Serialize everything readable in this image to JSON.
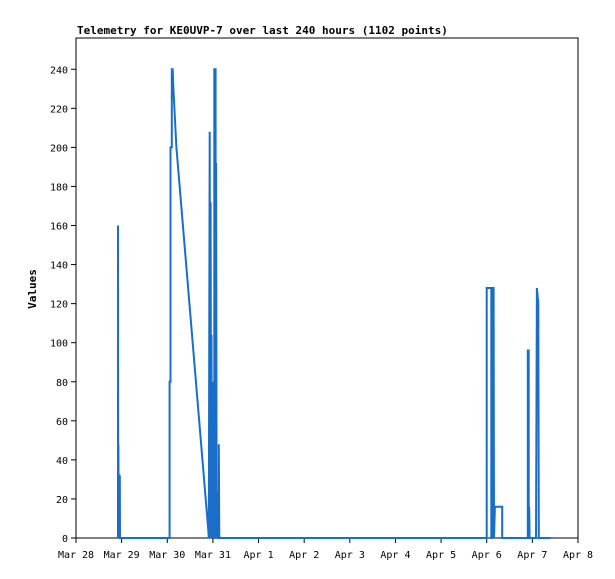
{
  "chart_data": {
    "type": "line",
    "title": "Telemetry for KE0UVP-7 over last 240 hours (1102 points)",
    "xlabel": "",
    "ylabel": "Values",
    "x_unit": "days (March 28 = 0)",
    "xlim": [
      0,
      11
    ],
    "ylim": [
      0,
      256
    ],
    "x_ticks": [
      {
        "x": 0,
        "label": "Mar 28"
      },
      {
        "x": 1,
        "label": "Mar 29"
      },
      {
        "x": 2,
        "label": "Mar 30"
      },
      {
        "x": 3,
        "label": "Mar 31"
      },
      {
        "x": 4,
        "label": "Apr 1"
      },
      {
        "x": 5,
        "label": "Apr 2"
      },
      {
        "x": 6,
        "label": "Apr 3"
      },
      {
        "x": 7,
        "label": "Apr 4"
      },
      {
        "x": 8,
        "label": "Apr 5"
      },
      {
        "x": 9,
        "label": "Apr 6"
      },
      {
        "x": 10,
        "label": "Apr 7"
      },
      {
        "x": 11,
        "label": "Apr 8"
      }
    ],
    "y_ticks": [
      0,
      20,
      40,
      60,
      80,
      100,
      120,
      140,
      160,
      180,
      200,
      220,
      240
    ],
    "grid": false,
    "series": [
      {
        "name": "",
        "color": "#1a6ec8",
        "points": [
          [
            0.92,
            0
          ],
          [
            0.92,
            160
          ],
          [
            0.925,
            0
          ],
          [
            0.93,
            48
          ],
          [
            0.935,
            0
          ],
          [
            0.94,
            32
          ],
          [
            0.95,
            32
          ],
          [
            0.955,
            0
          ],
          [
            0.96,
            32
          ],
          [
            0.965,
            0
          ],
          [
            0.97,
            0
          ],
          [
            2.05,
            0
          ],
          [
            2.05,
            80
          ],
          [
            2.07,
            80
          ],
          [
            2.07,
            200
          ],
          [
            2.1,
            200
          ],
          [
            2.1,
            240
          ],
          [
            2.12,
            240
          ],
          [
            2.13,
            232
          ],
          [
            2.2,
            200
          ],
          [
            2.9,
            4
          ],
          [
            2.91,
            0
          ],
          [
            2.93,
            208
          ],
          [
            2.94,
            0
          ],
          [
            2.95,
            172
          ],
          [
            2.96,
            8
          ],
          [
            2.97,
            104
          ],
          [
            2.98,
            0
          ],
          [
            2.99,
            80
          ],
          [
            3.0,
            20
          ],
          [
            3.01,
            80
          ],
          [
            3.02,
            0
          ],
          [
            3.03,
            0
          ],
          [
            3.03,
            240
          ],
          [
            3.06,
            240
          ],
          [
            3.06,
            0
          ],
          [
            3.07,
            192
          ],
          [
            3.08,
            24
          ],
          [
            3.09,
            0
          ],
          [
            3.1,
            24
          ],
          [
            3.11,
            0
          ],
          [
            3.13,
            0
          ],
          [
            3.13,
            48
          ],
          [
            3.14,
            0
          ],
          [
            9.0,
            0
          ],
          [
            9.0,
            128
          ],
          [
            9.1,
            128
          ],
          [
            9.1,
            0
          ],
          [
            9.12,
            0
          ],
          [
            9.12,
            128
          ],
          [
            9.15,
            128
          ],
          [
            9.16,
            0
          ],
          [
            9.18,
            16
          ],
          [
            9.34,
            16
          ],
          [
            9.34,
            0
          ],
          [
            9.9,
            0
          ],
          [
            9.9,
            96
          ],
          [
            9.92,
            96
          ],
          [
            9.92,
            0
          ],
          [
            9.93,
            16
          ],
          [
            9.94,
            0
          ],
          [
            10.08,
            0
          ],
          [
            10.1,
            128
          ],
          [
            10.13,
            120
          ],
          [
            10.14,
            0
          ],
          [
            10.4,
            0
          ]
        ]
      }
    ]
  }
}
